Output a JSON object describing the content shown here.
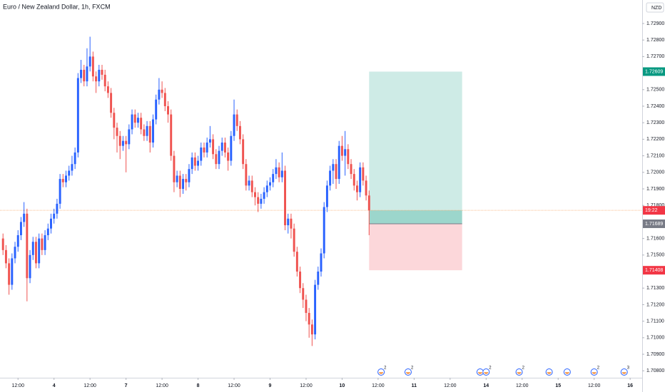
{
  "chart_data": {
    "type": "candlestick",
    "title": "Euro / New Zealand Dollar, 1h, FXCM",
    "currency": "NZD",
    "up_color": "#2962ff",
    "down_color": "#ef5350",
    "xlim": [
      -6,
      208
    ],
    "ylim": [
      1.70758,
      1.73042
    ],
    "xticks": [
      {
        "value": 0,
        "label": "12:00"
      },
      {
        "value": 12,
        "label": "4"
      },
      {
        "value": 24,
        "label": "12:00"
      },
      {
        "value": 36,
        "label": "7"
      },
      {
        "value": 48,
        "label": "12:00"
      },
      {
        "value": 60,
        "label": "8"
      },
      {
        "value": 72,
        "label": "12:00"
      },
      {
        "value": 84,
        "label": "9"
      },
      {
        "value": 96,
        "label": "12:00"
      },
      {
        "value": 108,
        "label": "10"
      },
      {
        "value": 120,
        "label": "12:00"
      },
      {
        "value": 132,
        "label": "11"
      },
      {
        "value": 144,
        "label": "12:00"
      },
      {
        "value": 156,
        "label": "14"
      },
      {
        "value": 168,
        "label": "12:00"
      },
      {
        "value": 180,
        "label": "15"
      },
      {
        "value": 192,
        "label": "12:00"
      },
      {
        "value": 204,
        "label": "16"
      }
    ],
    "yticks": [
      {
        "value": 1.708,
        "label": "1.70800"
      },
      {
        "value": 1.709,
        "label": "1.70900"
      },
      {
        "value": 1.71,
        "label": "1.71000"
      },
      {
        "value": 1.711,
        "label": "1.71100"
      },
      {
        "value": 1.712,
        "label": "1.71200"
      },
      {
        "value": 1.713,
        "label": "1.71300"
      },
      {
        "value": 1.715,
        "label": "1.71500"
      },
      {
        "value": 1.716,
        "label": "1.71600"
      },
      {
        "value": 1.718,
        "label": "1.71800"
      },
      {
        "value": 1.719,
        "label": "1.71900"
      },
      {
        "value": 1.72,
        "label": "1.72000"
      },
      {
        "value": 1.721,
        "label": "1.72100"
      },
      {
        "value": 1.722,
        "label": "1.72200"
      },
      {
        "value": 1.723,
        "label": "1.72300"
      },
      {
        "value": 1.724,
        "label": "1.72400"
      },
      {
        "value": 1.725,
        "label": "1.72500"
      },
      {
        "value": 1.727,
        "label": "1.72700"
      },
      {
        "value": 1.728,
        "label": "1.72800"
      },
      {
        "value": 1.729,
        "label": "1.72900"
      }
    ],
    "grid": false,
    "x": [
      -5,
      -4,
      -3,
      -2,
      -1,
      0,
      1,
      2,
      3,
      4,
      5,
      6,
      7,
      8,
      9,
      10,
      11,
      12,
      13,
      14,
      15,
      16,
      17,
      18,
      19,
      20,
      21,
      22,
      23,
      24,
      25,
      26,
      27,
      28,
      29,
      30,
      31,
      32,
      33,
      34,
      35,
      36,
      37,
      38,
      39,
      40,
      41,
      42,
      43,
      44,
      45,
      46,
      47,
      48,
      49,
      50,
      51,
      52,
      53,
      54,
      55,
      56,
      57,
      58,
      59,
      60,
      61,
      62,
      63,
      64,
      65,
      66,
      67,
      68,
      69,
      70,
      71,
      72,
      73,
      74,
      75,
      76,
      77,
      78,
      79,
      80,
      81,
      82,
      83,
      84,
      85,
      86,
      87,
      88,
      89,
      90,
      91,
      92,
      93,
      94,
      95,
      96,
      97,
      98,
      99,
      100,
      101,
      102,
      103,
      104,
      105,
      106,
      107,
      108,
      109,
      110,
      111,
      112,
      113,
      114,
      115,
      116,
      117
    ],
    "open": [
      1.716,
      1.7153,
      1.7145,
      1.7132,
      1.7148,
      1.7155,
      1.7162,
      1.717,
      1.7175,
      1.7136,
      1.715,
      1.7158,
      1.7145,
      1.716,
      1.7153,
      1.7162,
      1.7166,
      1.7172,
      1.7175,
      1.7181,
      1.7196,
      1.7194,
      1.7198,
      1.7201,
      1.7205,
      1.7212,
      1.7257,
      1.7262,
      1.7255,
      1.7264,
      1.727,
      1.7258,
      1.7255,
      1.7262,
      1.7259,
      1.7252,
      1.7248,
      1.7236,
      1.7227,
      1.7222,
      1.7216,
      1.7219,
      1.7217,
      1.7226,
      1.7235,
      1.723,
      1.7233,
      1.7226,
      1.7222,
      1.7228,
      1.7218,
      1.7232,
      1.7244,
      1.725,
      1.7248,
      1.724,
      1.7235,
      1.721,
      1.7194,
      1.7198,
      1.719,
      1.7196,
      1.7194,
      1.7202,
      1.7209,
      1.7204,
      1.7207,
      1.7215,
      1.7212,
      1.7218,
      1.722,
      1.7211,
      1.7205,
      1.7213,
      1.7218,
      1.7212,
      1.7207,
      1.7222,
      1.7235,
      1.7228,
      1.722,
      1.7205,
      1.7192,
      1.7195,
      1.7188,
      1.7185,
      1.7181,
      1.7184,
      1.7188,
      1.7192,
      1.7194,
      1.7199,
      1.7203,
      1.7197,
      1.7201,
      1.7168,
      1.7172,
      1.7166,
      1.7152,
      1.714,
      1.713,
      1.7123,
      1.7115,
      1.7108,
      1.7102,
      1.7132,
      1.714,
      1.7151,
      1.7179,
      1.7192,
      1.7201,
      1.7205,
      1.7196,
      1.7216,
      1.721,
      1.7214,
      1.7205,
      1.7199,
      1.7192,
      1.7188,
      1.7203,
      1.7195,
      1.7186
    ],
    "high": [
      1.7163,
      1.7156,
      1.7148,
      1.7151,
      1.7158,
      1.7165,
      1.7173,
      1.7182,
      1.7178,
      1.7153,
      1.7161,
      1.7161,
      1.7163,
      1.7163,
      1.7165,
      1.7169,
      1.7175,
      1.7178,
      1.7184,
      1.7199,
      1.7199,
      1.7201,
      1.7204,
      1.721,
      1.7215,
      1.726,
      1.7268,
      1.7265,
      1.7275,
      1.7282,
      1.7273,
      1.7261,
      1.7265,
      1.7265,
      1.7262,
      1.7255,
      1.7251,
      1.7239,
      1.723,
      1.7225,
      1.7222,
      1.7222,
      1.7229,
      1.7238,
      1.7238,
      1.7236,
      1.7236,
      1.7229,
      1.7231,
      1.7231,
      1.7235,
      1.7247,
      1.7257,
      1.7255,
      1.7251,
      1.7243,
      1.7238,
      1.7213,
      1.7201,
      1.7201,
      1.7199,
      1.7199,
      1.7205,
      1.7212,
      1.7212,
      1.721,
      1.7218,
      1.7218,
      1.7221,
      1.7228,
      1.7223,
      1.7214,
      1.7216,
      1.7221,
      1.7221,
      1.7215,
      1.7225,
      1.7244,
      1.7238,
      1.7231,
      1.7223,
      1.7208,
      1.7198,
      1.7198,
      1.7191,
      1.7188,
      1.7187,
      1.7191,
      1.7195,
      1.7197,
      1.7202,
      1.7208,
      1.7206,
      1.7212,
      1.7204,
      1.7175,
      1.7175,
      1.7169,
      1.7155,
      1.7143,
      1.7133,
      1.7126,
      1.7118,
      1.7111,
      1.7135,
      1.7143,
      1.7154,
      1.7182,
      1.7195,
      1.7204,
      1.7208,
      1.7208,
      1.7219,
      1.7222,
      1.7225,
      1.7217,
      1.7208,
      1.7202,
      1.7195,
      1.7206,
      1.7206,
      1.7198,
      1.7189
    ],
    "low": [
      1.715,
      1.7142,
      1.7126,
      1.7129,
      1.7145,
      1.7152,
      1.7159,
      1.7167,
      1.7122,
      1.7133,
      1.7147,
      1.7142,
      1.7142,
      1.715,
      1.715,
      1.7159,
      1.7163,
      1.7169,
      1.7172,
      1.7178,
      1.7191,
      1.7191,
      1.7195,
      1.7198,
      1.7202,
      1.7209,
      1.7254,
      1.7252,
      1.7252,
      1.7261,
      1.7255,
      1.7248,
      1.7252,
      1.7256,
      1.7249,
      1.7245,
      1.7233,
      1.722,
      1.7212,
      1.7208,
      1.7213,
      1.72,
      1.7214,
      1.7223,
      1.7227,
      1.7227,
      1.7223,
      1.7219,
      1.7219,
      1.7212,
      1.7215,
      1.7229,
      1.7241,
      1.7245,
      1.7237,
      1.723,
      1.7207,
      1.7188,
      1.7191,
      1.7185,
      1.7187,
      1.7189,
      1.7191,
      1.7199,
      1.7201,
      1.7201,
      1.7204,
      1.7209,
      1.7209,
      1.7215,
      1.7208,
      1.7202,
      1.7202,
      1.721,
      1.7209,
      1.7201,
      1.7204,
      1.7219,
      1.7225,
      1.7217,
      1.7202,
      1.7189,
      1.7189,
      1.7185,
      1.718,
      1.7176,
      1.7178,
      1.7181,
      1.7185,
      1.7189,
      1.7191,
      1.7196,
      1.7194,
      1.7194,
      1.7165,
      1.7163,
      1.716,
      1.7149,
      1.7137,
      1.7127,
      1.7118,
      1.711,
      1.71,
      1.7095,
      1.7099,
      1.7129,
      1.7137,
      1.7148,
      1.7176,
      1.7189,
      1.7193,
      1.719,
      1.7193,
      1.7207,
      1.7198,
      1.7202,
      1.7196,
      1.7189,
      1.7183,
      1.7185,
      1.7192,
      1.7183,
      1.7162
    ],
    "close": [
      1.7153,
      1.7145,
      1.7132,
      1.7148,
      1.7155,
      1.7162,
      1.717,
      1.7175,
      1.7136,
      1.715,
      1.7158,
      1.7145,
      1.716,
      1.7153,
      1.7162,
      1.7166,
      1.7172,
      1.7175,
      1.7181,
      1.7196,
      1.7194,
      1.7198,
      1.7201,
      1.7205,
      1.7212,
      1.7257,
      1.7262,
      1.7255,
      1.7264,
      1.727,
      1.7258,
      1.7255,
      1.7262,
      1.7259,
      1.7252,
      1.7248,
      1.7236,
      1.7227,
      1.7222,
      1.7216,
      1.7219,
      1.7217,
      1.7226,
      1.7235,
      1.723,
      1.7233,
      1.7226,
      1.7222,
      1.7228,
      1.7218,
      1.7232,
      1.7244,
      1.725,
      1.7248,
      1.724,
      1.7235,
      1.721,
      1.7194,
      1.7198,
      1.719,
      1.7196,
      1.7194,
      1.7202,
      1.7209,
      1.7204,
      1.7207,
      1.7215,
      1.7212,
      1.7218,
      1.722,
      1.7211,
      1.7205,
      1.7213,
      1.7218,
      1.7212,
      1.7207,
      1.7222,
      1.7235,
      1.7228,
      1.722,
      1.7205,
      1.7192,
      1.7195,
      1.7188,
      1.7185,
      1.7181,
      1.7184,
      1.7188,
      1.7192,
      1.7194,
      1.7199,
      1.7203,
      1.7197,
      1.7201,
      1.7168,
      1.7172,
      1.7166,
      1.7152,
      1.714,
      1.713,
      1.7123,
      1.7115,
      1.7108,
      1.7102,
      1.7132,
      1.714,
      1.7151,
      1.7179,
      1.7192,
      1.7201,
      1.7205,
      1.7196,
      1.7216,
      1.721,
      1.7214,
      1.7205,
      1.7199,
      1.7192,
      1.7188,
      1.7203,
      1.7195,
      1.7186,
      1.7177
    ],
    "current_price": 1.7177,
    "countdown": "19:22",
    "position": {
      "x": [
        117,
        148
      ],
      "target": 1.72609,
      "entry": 1.71689,
      "stop": 1.71408
    },
    "events": [
      {
        "x": 121,
        "label": "2"
      },
      {
        "x": 130,
        "label": "2"
      },
      {
        "x": 154
      },
      {
        "x": 156,
        "label": "2"
      },
      {
        "x": 167,
        "label": "2"
      },
      {
        "x": 177
      },
      {
        "x": 183
      },
      {
        "x": 192,
        "label": "2"
      },
      {
        "x": 202,
        "label": "3"
      }
    ]
  }
}
